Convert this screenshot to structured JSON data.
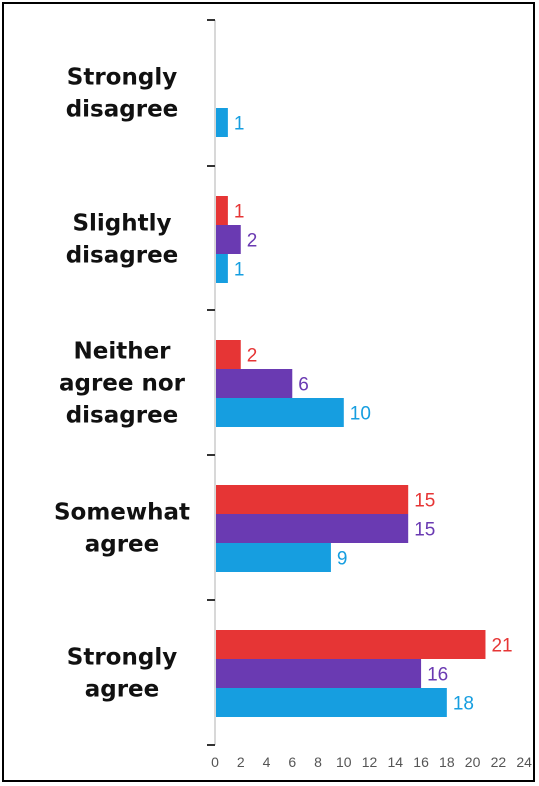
{
  "chart_data": {
    "type": "bar",
    "orientation": "horizontal",
    "categories": [
      "Strongly disagree",
      "Slightly disagree",
      "Neither agree nor disagree",
      "Somewhat agree",
      "Strongly agree"
    ],
    "category_lines": [
      [
        "Strongly",
        "disagree"
      ],
      [
        "Slightly",
        "disagree"
      ],
      [
        "Neither",
        "agree nor",
        "disagree"
      ],
      [
        "Somewhat",
        "agree"
      ],
      [
        "Strongly",
        "agree"
      ]
    ],
    "series": [
      {
        "color": "#e63535",
        "values": [
          null,
          1,
          2,
          15,
          21
        ]
      },
      {
        "color": "#6a3ab2",
        "values": [
          null,
          2,
          6,
          15,
          16
        ]
      },
      {
        "color": "#169ee0",
        "values": [
          1,
          1,
          10,
          9,
          18
        ]
      }
    ],
    "xlim": [
      0,
      24
    ],
    "xticks": [
      0,
      2,
      4,
      6,
      8,
      10,
      12,
      14,
      16,
      18,
      20,
      22,
      24
    ],
    "grid": false,
    "legend": "none",
    "title": "",
    "xlabel": "",
    "ylabel": ""
  }
}
